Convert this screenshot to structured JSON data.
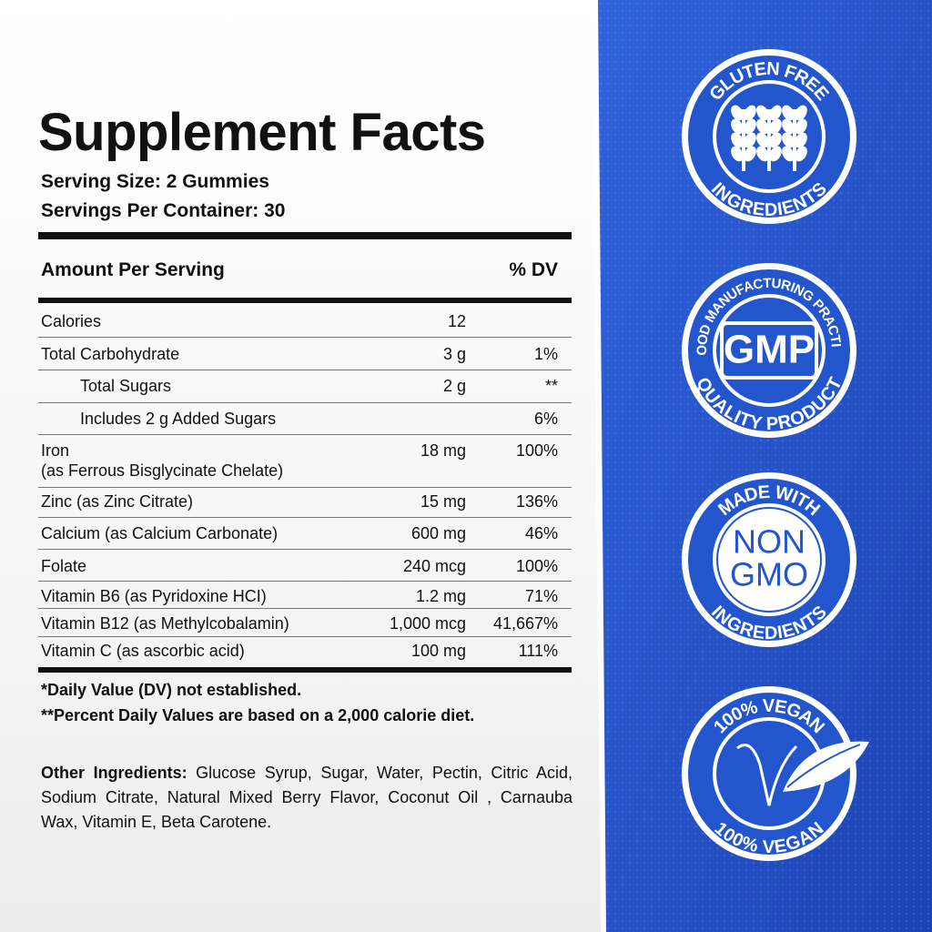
{
  "header": {
    "title": "Supplement Facts",
    "serving_size": "Serving Size: 2 Gummies",
    "servings_per_container": "Servings Per Container: 30"
  },
  "table": {
    "columns": [
      "Amount Per Serving",
      "% DV"
    ],
    "rows": [
      {
        "name": "Calories",
        "amount": "12"
      },
      {
        "name": "Total Carbohydrate",
        "amount": "3 g",
        "dv": "1%"
      },
      {
        "name": "Total Sugars",
        "amount": "2 g",
        "dv": "**"
      },
      {
        "name": "Includes 2 g Added Sugars",
        "dv": "6%"
      },
      {
        "name": "Iron",
        "note": "(as Ferrous Bisglycinate Chelate)",
        "amount": "18 mg",
        "dv": "100%"
      },
      {
        "name": "Zinc (as Zinc Citrate)",
        "amount": "15 mg",
        "dv": "136%"
      },
      {
        "name": "Calcium (as Calcium Carbonate)",
        "amount": "600 mg",
        "dv": "46%"
      },
      {
        "name": "Folate",
        "amount": "240 mcg",
        "dv": "100%"
      },
      {
        "name": "Vitamin B6 (as Pyridoxine HCI)",
        "amount": "1.2 mg",
        "dv": "71%"
      },
      {
        "name": "Vitamin B12 (as Methylcobalamin)",
        "amount": "1,000 mcg",
        "dv": "41,667%"
      },
      {
        "name": "Vitamin C (as ascorbic acid)",
        "amount": "100 mg",
        "dv": "111%"
      }
    ]
  },
  "footnotes": [
    "*Daily Value (DV) not established.",
    "**Percent Daily Values are based on a 2,000 calorie diet."
  ],
  "other_ingredients": {
    "label": "Other Ingredients:",
    "text": "Glucose Syrup, Sugar, Water, Pectin, Citric Acid, Sodium Citrate, Natural Mixed Berry Flavor, Coconut Oil , Carnauba Wax, Vitamin E, Beta Carotene."
  },
  "badges": [
    {
      "top": "GLUTEN FREE",
      "bottom": "INGREDIENTS"
    },
    {
      "top": "GOOD MANUFACTURING PRACTICE",
      "center": "GMP",
      "bottom": "QUALITY PRODUCT"
    },
    {
      "top": "MADE WITH",
      "center": [
        "NON",
        "GMO"
      ],
      "bottom": "INGREDIENTS"
    },
    {
      "top": "100% VEGAN",
      "bottom": "100% VEGAN"
    }
  ]
}
